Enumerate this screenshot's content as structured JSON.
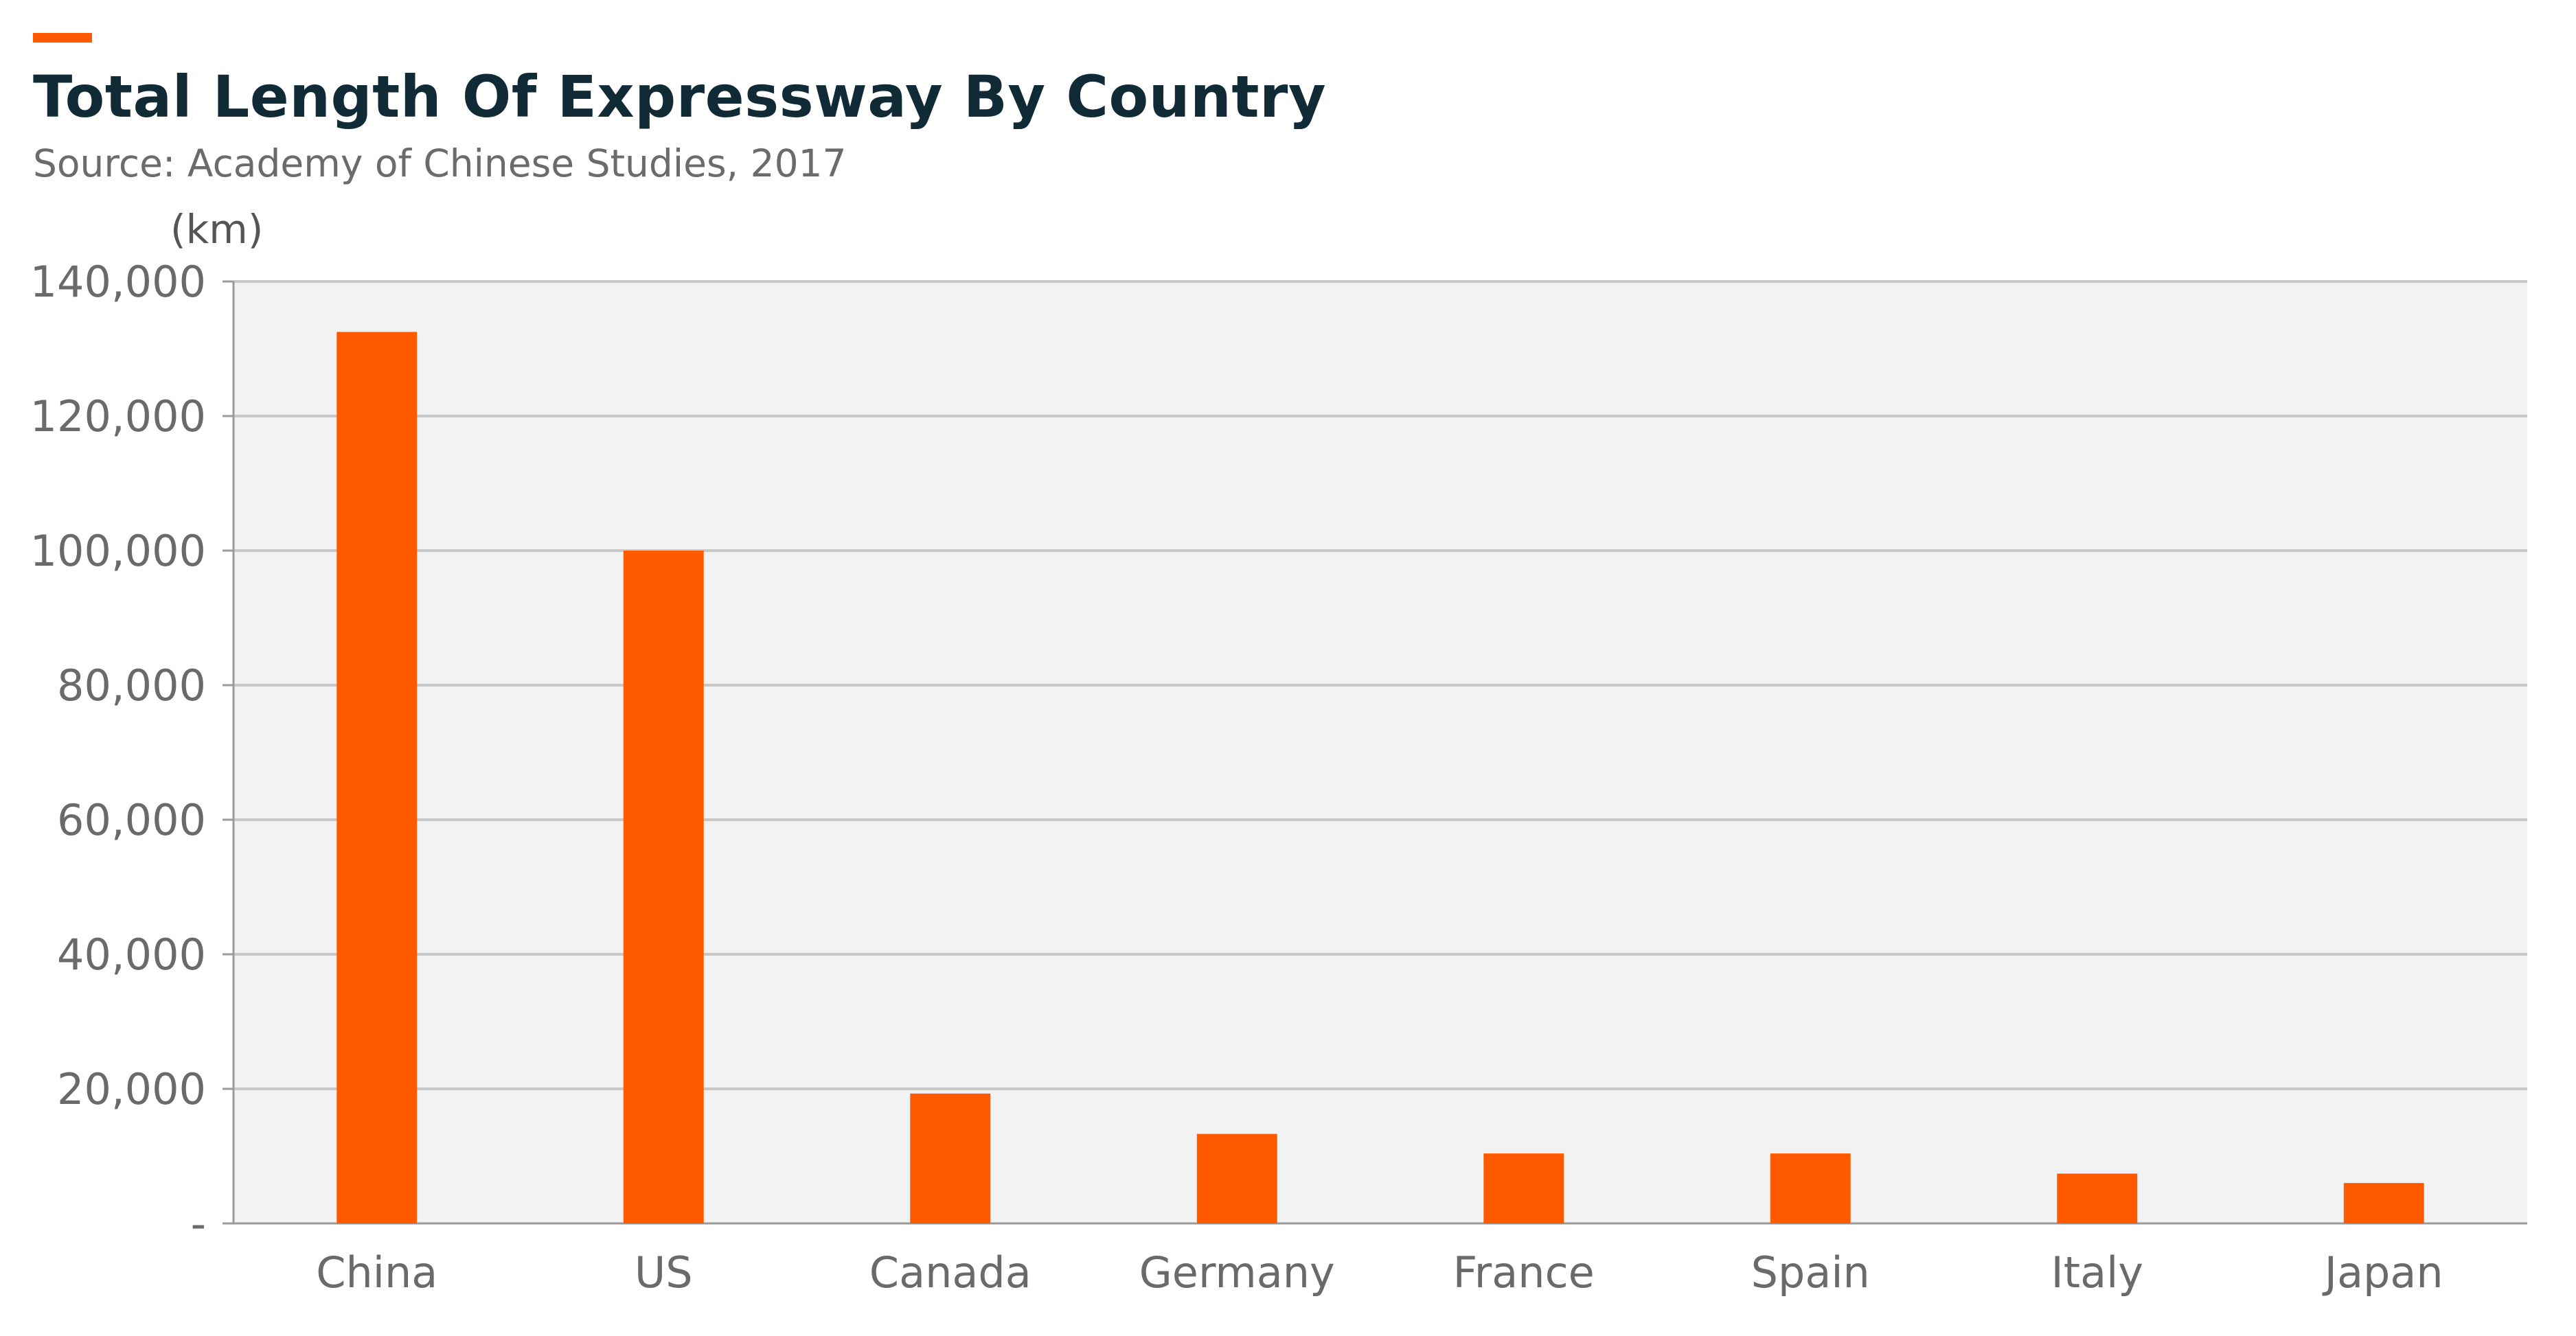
{
  "header": {
    "accent_color": "#ff5a00",
    "title": "Total Length Of Expressway By Country",
    "subtitle": "Source: Academy of Chinese Studies, 2017"
  },
  "chart_data": {
    "type": "bar",
    "title": "Total Length Of Expressway By Country",
    "subtitle": "Source: Academy of Chinese Studies, 2017",
    "ylabel": "(km)",
    "xlabel": "",
    "categories": [
      "China",
      "US",
      "Canada",
      "Germany",
      "France",
      "Spain",
      "Italy",
      "Japan"
    ],
    "values": [
      132500,
      100000,
      19300,
      13300,
      10400,
      10400,
      7400,
      6000
    ],
    "ylim": [
      0,
      140000
    ],
    "yticks": [
      0,
      20000,
      40000,
      60000,
      80000,
      100000,
      120000,
      140000
    ],
    "ytick_labels": [
      "-",
      "20,000",
      "40,000",
      "60,000",
      "80,000",
      "100,000",
      "120,000",
      "140,000"
    ],
    "bar_color": "#ff5a00",
    "plot_background": "#f2f2f2",
    "grid": true
  }
}
